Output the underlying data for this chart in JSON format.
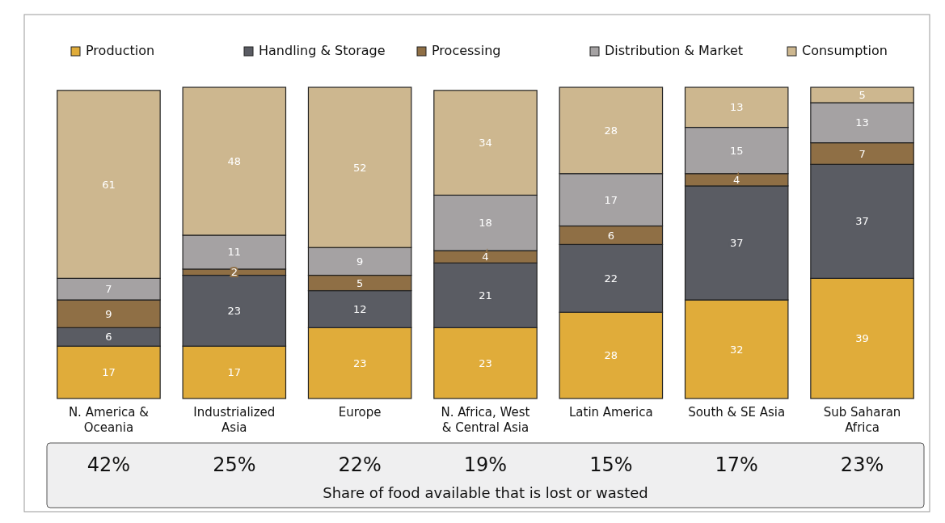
{
  "chart_data": {
    "type": "bar",
    "stacked": true,
    "data_labels": true,
    "legend": "top",
    "tick_labels": "x",
    "ylim": [
      0,
      101
    ],
    "categories": [
      "N. America & Oceania",
      "Industrialized Asia",
      "Europe",
      "N. Africa, West & Central Asia",
      "Latin America",
      "South & SE Asia",
      "Sub Saharan Africa"
    ],
    "series": [
      {
        "name": "Production",
        "color": "#e0ac3a",
        "values": [
          17,
          17,
          23,
          23,
          28,
          32,
          39
        ]
      },
      {
        "name": "Handling & Storage",
        "color": "#5a5c63",
        "values": [
          6,
          23,
          12,
          21,
          22,
          37,
          37
        ]
      },
      {
        "name": "Processing",
        "color": "#8f6f45",
        "values": [
          9,
          2,
          5,
          4,
          6,
          4,
          7
        ]
      },
      {
        "name": "Distribution & Market",
        "color": "#a5a2a3",
        "values": [
          7,
          11,
          9,
          18,
          17,
          15,
          13
        ]
      },
      {
        "name": "Consumption",
        "color": "#cdb78f",
        "values": [
          61,
          48,
          52,
          34,
          28,
          13,
          5
        ]
      }
    ],
    "annotations": [
      "42%",
      "25%",
      "22%",
      "19%",
      "15%",
      "17%",
      "23%",
      "Share of food available that is lost or wasted"
    ]
  }
}
